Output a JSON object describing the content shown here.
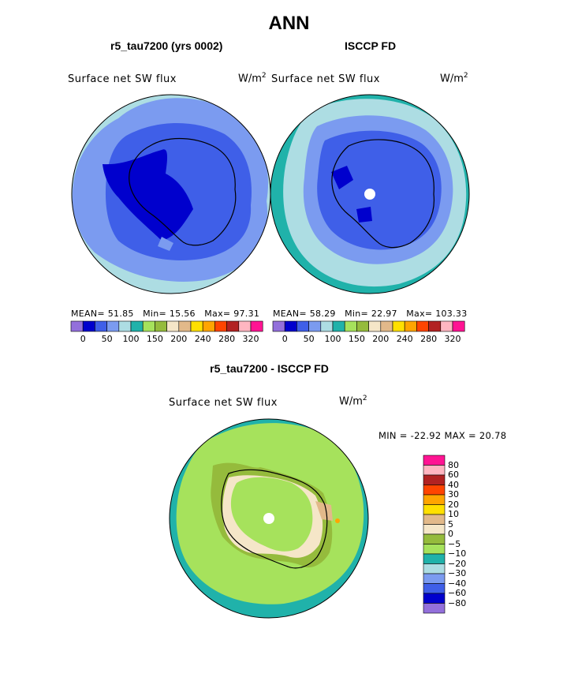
{
  "title": "ANN",
  "panels": [
    {
      "subtitle": "r5_tau7200 (yrs 0002)",
      "variable": "Surface net SW flux",
      "units": "W/m",
      "units_exp": "2",
      "stats": {
        "mean_label": "MEAN=",
        "mean": "51.85",
        "min_label": "Min=",
        "min": "15.56",
        "max_label": "Max=",
        "max": "97.31"
      }
    },
    {
      "subtitle": "ISCCP FD",
      "variable": "Surface net SW flux",
      "units": "W/m",
      "units_exp": "2",
      "stats": {
        "mean_label": "MEAN=",
        "mean": "58.29",
        "min_label": "Min=",
        "min": "22.97",
        "max_label": "Max=",
        "max": "103.33"
      }
    }
  ],
  "abs_colorbar": {
    "colors": [
      "#9370DB",
      "#0000CD",
      "#3F5FE8",
      "#7B9BF0",
      "#ADDDE3",
      "#20B2AA",
      "#A6E25C",
      "#95BB3C",
      "#F5E6C8",
      "#E2B98A",
      "#FFE000",
      "#FFA500",
      "#FF4500",
      "#B22222",
      "#FFB6C1",
      "#FF1493"
    ],
    "labels": [
      "0",
      "50",
      "100",
      "150",
      "200",
      "240",
      "280",
      "320"
    ]
  },
  "difference": {
    "subtitle": "r5_tau7200 - ISCCP FD",
    "variable": "Surface net SW flux",
    "units": "W/m",
    "units_exp": "2",
    "stats_text": "MIN = -22.92 MAX =  20.78",
    "colorbar": {
      "colors": [
        "#FF1493",
        "#FFB6C1",
        "#B22222",
        "#FF4500",
        "#FFA500",
        "#FFE000",
        "#E2B98A",
        "#F5E6C8",
        "#95BB3C",
        "#A6E25C",
        "#20B2AA",
        "#ADDDE3",
        "#7B9BF0",
        "#3F5FE8",
        "#0000CD",
        "#9370DB"
      ],
      "labels": [
        "80",
        "60",
        "40",
        "30",
        "20",
        "10",
        "5",
        "0",
        "−5",
        "−10",
        "−20",
        "−30",
        "−40",
        "−60",
        "−80"
      ]
    }
  },
  "colors": {
    "dark_blue": "#0000CD",
    "medium_blue": "#3F5FE8",
    "light_blue": "#7B9BF0",
    "pale_cyan": "#ADDDE3",
    "teal": "#20B2AA",
    "light_green": "#A6E25C",
    "olive_green": "#95BB3C",
    "cream": "#F5E6C8",
    "tan": "#E2B98A",
    "orange": "#FFA500"
  }
}
